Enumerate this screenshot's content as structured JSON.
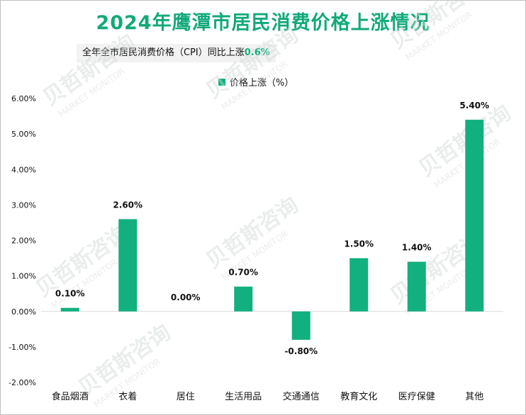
{
  "title": "2024年鹰潭市居民消费价格上涨情况",
  "subtitle": {
    "text": "全年全市居民消费价格（CPI）同比上涨",
    "highlight": "0.6%"
  },
  "watermark": {
    "cn": "贝哲斯咨询",
    "en": "MARKET MONITOR"
  },
  "colors": {
    "bar": "#12b07f",
    "title": "#12a97a"
  },
  "chart_data": {
    "type": "bar",
    "title": "2024年鹰潭市居民消费价格上涨情况",
    "categories": [
      "食品烟酒",
      "衣着",
      "居住",
      "生活用品",
      "交通通信",
      "教育文化",
      "医疗保健",
      "其他"
    ],
    "series": [
      {
        "name": "价格上涨（%）",
        "values": [
          0.1,
          2.6,
          0.0,
          0.7,
          -0.8,
          1.5,
          1.4,
          5.4
        ]
      }
    ],
    "data_labels": [
      "0.10%",
      "2.60%",
      "0.00%",
      "0.70%",
      "-0.80%",
      "1.50%",
      "1.40%",
      "5.40%"
    ],
    "yticks": [
      "-2.00%",
      "-1.00%",
      "0.00%",
      "1.00%",
      "2.00%",
      "3.00%",
      "4.00%",
      "5.00%",
      "6.00%"
    ],
    "ylim": [
      -2,
      6
    ],
    "legend": "top-center",
    "grid": false
  }
}
